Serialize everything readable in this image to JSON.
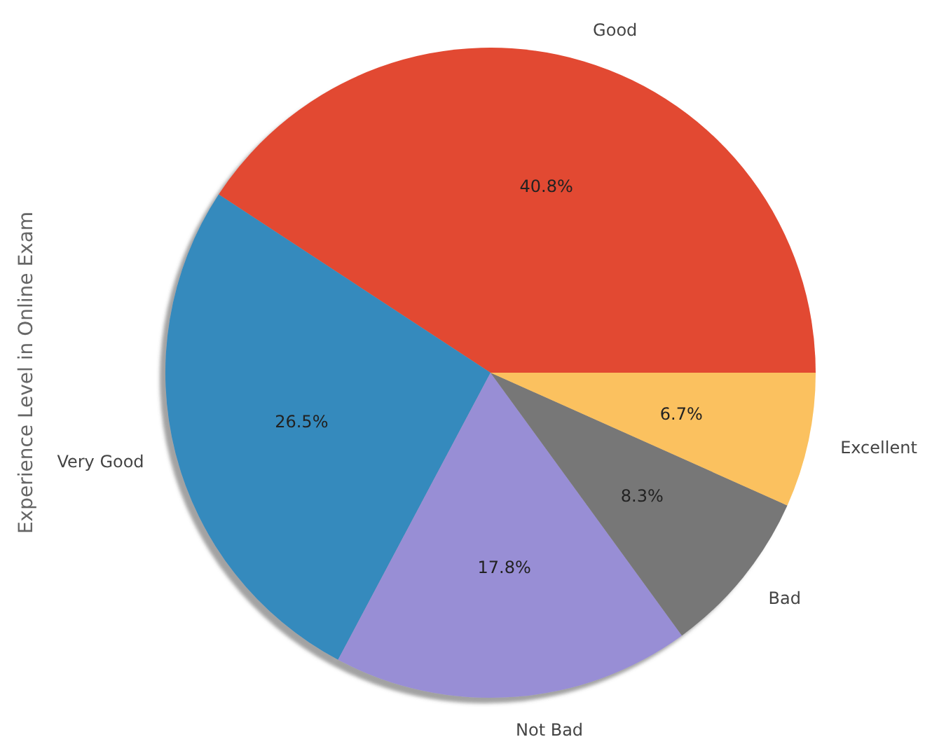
{
  "chart_data": {
    "type": "pie",
    "ylabel": "Experience Level in Online Exam",
    "categories": [
      "Good",
      "Very Good",
      "Not Bad",
      "Bad",
      "Excellent"
    ],
    "values": [
      40.8,
      26.5,
      17.8,
      8.3,
      6.7
    ],
    "colors": [
      "#e24a33",
      "#348abd",
      "#988ed5",
      "#777777",
      "#fbc15e"
    ],
    "value_labels": [
      "40.8%",
      "26.5%",
      "17.8%",
      "8.3%",
      "6.7%"
    ]
  }
}
